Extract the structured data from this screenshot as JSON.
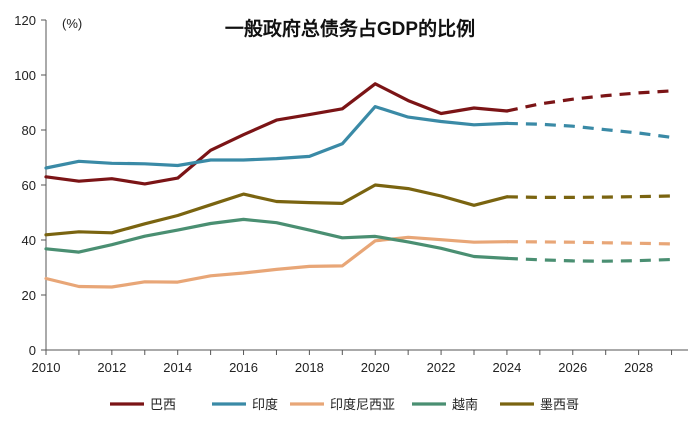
{
  "chart_data": {
    "type": "line",
    "title": "一般政府总债务占GDP的比例",
    "unit_label": "(%)",
    "xlabel": "",
    "ylabel": "",
    "x": [
      2010,
      2011,
      2012,
      2013,
      2014,
      2015,
      2016,
      2017,
      2018,
      2019,
      2020,
      2021,
      2022,
      2023,
      2024,
      2025,
      2026,
      2027,
      2028,
      2029
    ],
    "forecast_from": 2024,
    "xlim": [
      2010,
      2029.5
    ],
    "ylim": [
      0,
      120
    ],
    "x_ticks": [
      "2010",
      "2012",
      "2014",
      "2016",
      "2018",
      "2020",
      "2022",
      "2024",
      "2026",
      "2028"
    ],
    "x_tick_values": [
      2010,
      2012,
      2014,
      2016,
      2018,
      2020,
      2022,
      2024,
      2026,
      2028
    ],
    "y_ticks": [
      "0",
      "20",
      "40",
      "60",
      "80",
      "100",
      "120"
    ],
    "y_tick_values": [
      0,
      20,
      40,
      60,
      80,
      100,
      120
    ],
    "grid": false,
    "legend_position": "bottom",
    "series": [
      {
        "name": "巴西",
        "color": "#7b1416",
        "values": [
          63,
          61.4,
          62.3,
          60.4,
          62.5,
          72.6,
          78.3,
          83.6,
          85.6,
          87.7,
          96.8,
          90.7,
          86,
          88,
          86.9,
          89.5,
          91.2,
          92.5,
          93.5,
          94.2
        ]
      },
      {
        "name": "印度",
        "color": "#3a8aa6",
        "values": [
          66.2,
          68.6,
          67.9,
          67.7,
          67.1,
          69.1,
          69.1,
          69.6,
          70.4,
          75,
          88.5,
          84.7,
          83.1,
          81.9,
          82.4,
          82.1,
          81.4,
          80.1,
          78.9,
          77.3
        ]
      },
      {
        "name": "印度尼西亚",
        "color": "#e8a677",
        "values": [
          26,
          23.1,
          22.9,
          24.8,
          24.7,
          27,
          28,
          29.3,
          30.4,
          30.6,
          39.7,
          41,
          40.1,
          39.2,
          39.4,
          39.3,
          39.2,
          39,
          38.8,
          38.6
        ]
      },
      {
        "name": "越南",
        "color": "#4a8f72",
        "values": [
          36.8,
          35.6,
          38.3,
          41.4,
          43.6,
          46,
          47.5,
          46.3,
          43.6,
          40.8,
          41.3,
          39.3,
          37,
          34,
          33.3,
          32.8,
          32.4,
          32.3,
          32.5,
          32.9
        ]
      },
      {
        "name": "墨西哥",
        "color": "#7a6410",
        "values": [
          41.9,
          43,
          42.6,
          45.9,
          48.9,
          52.8,
          56.7,
          54,
          53.6,
          53.3,
          60,
          58.7,
          56,
          52.6,
          55.7,
          55.5,
          55.5,
          55.6,
          55.8,
          56
        ]
      }
    ]
  }
}
